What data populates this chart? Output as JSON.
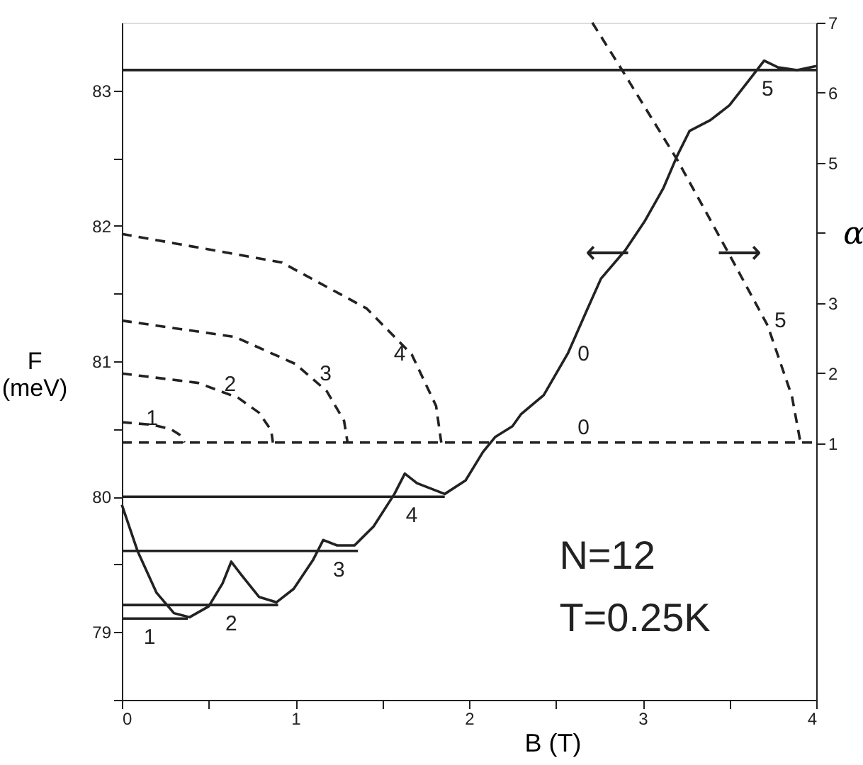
{
  "chart_data": {
    "type": "line",
    "xlabel": "B (T)",
    "ylabel": "F (meV)",
    "y2label": "α",
    "xlim": [
      0,
      4
    ],
    "xticks": [
      0,
      {
        "value": 0.5,
        "label": null
      },
      1,
      {
        "value": 1.5,
        "label": null
      },
      2,
      {
        "value": 2.5,
        "label": null
      },
      3,
      {
        "value": 3.5,
        "label": null
      },
      4
    ],
    "ylim": [
      78.5,
      83.5
    ],
    "yticks": [
      {
        "value": 78.5,
        "label": null
      },
      79,
      {
        "value": 79.5,
        "label": null
      },
      80,
      {
        "value": 80.5,
        "label": null
      },
      81,
      {
        "value": 81.5,
        "label": null
      },
      82,
      {
        "value": 82.5,
        "label": null
      },
      83
    ],
    "y2lim": [
      -2.66,
      7
    ],
    "y2ticks": [
      1,
      2,
      3,
      {
        "value": 4,
        "label": null
      },
      5,
      6,
      7
    ],
    "grid": false,
    "marker": "none",
    "series": [
      {
        "color": "#222222",
        "line_style": "solid",
        "x": [
          0,
          0.09,
          0.2,
          0.3,
          0.39,
          0.5,
          0.58,
          0.63,
          0.69,
          0.79,
          0.89,
          0.99,
          1.1,
          1.16,
          1.24,
          1.34,
          1.45,
          1.57,
          1.63,
          1.7,
          1.86,
          1.98,
          2.08,
          2.15,
          2.25,
          2.3,
          2.43,
          2.57,
          2.68,
          2.76,
          2.9,
          3.01,
          3.12,
          3.2,
          3.27,
          3.39,
          3.5,
          3.61,
          3.7,
          3.78,
          3.89,
          4.0
        ],
        "values": [
          79.94,
          79.6,
          79.29,
          79.14,
          79.11,
          79.19,
          79.36,
          79.52,
          79.42,
          79.26,
          79.22,
          79.32,
          79.53,
          79.68,
          79.64,
          79.64,
          79.78,
          80.02,
          80.17,
          80.1,
          80.02,
          80.12,
          80.33,
          80.44,
          80.52,
          80.61,
          80.75,
          81.06,
          81.38,
          81.61,
          81.82,
          82.03,
          82.28,
          82.52,
          82.7,
          82.78,
          82.89,
          83.07,
          83.22,
          83.17,
          83.15,
          83.18
        ]
      },
      {
        "color": "#222222",
        "line_style": "solid",
        "x": [
          0,
          0.38
        ],
        "values": [
          79.1,
          79.1
        ]
      },
      {
        "color": "#222222",
        "line_style": "solid",
        "x": [
          0,
          0.9
        ],
        "values": [
          79.2,
          79.2
        ]
      },
      {
        "color": "#222222",
        "line_style": "solid",
        "x": [
          0,
          1.36
        ],
        "values": [
          79.6,
          79.6
        ]
      },
      {
        "color": "#222222",
        "line_style": "solid",
        "x": [
          0,
          1.86
        ],
        "values": [
          80.0,
          80.0
        ]
      },
      {
        "color": "#222222",
        "line_style": "solid",
        "x": [
          0,
          4
        ],
        "values": [
          83.15,
          83.15
        ]
      },
      {
        "color": "#222222",
        "line_style": "dashed",
        "x": [
          0,
          4
        ],
        "values": [
          80.4,
          80.4
        ]
      },
      {
        "color": "#222222",
        "line_style": "dashed",
        "x": [
          0,
          0.18,
          0.28,
          0.33,
          0.35,
          0.36
        ],
        "values": [
          80.55,
          80.53,
          80.5,
          80.46,
          80.43,
          80.4
        ]
      },
      {
        "color": "#222222",
        "line_style": "dashed",
        "x": [
          0,
          0.44,
          0.67,
          0.79,
          0.86,
          0.87
        ],
        "values": [
          80.91,
          80.84,
          80.73,
          80.62,
          80.49,
          80.4
        ]
      },
      {
        "color": "#222222",
        "line_style": "dashed",
        "x": [
          0,
          0.65,
          1.0,
          1.18,
          1.28,
          1.3
        ],
        "values": [
          81.3,
          81.18,
          80.98,
          80.78,
          80.56,
          80.4
        ]
      },
      {
        "color": "#222222",
        "line_style": "dashed",
        "x": [
          0,
          0.92,
          1.41,
          1.67,
          1.81,
          1.84
        ],
        "values": [
          81.94,
          81.73,
          81.39,
          81.05,
          80.67,
          80.4
        ]
      },
      {
        "color": "#222222",
        "line_style": "dashed",
        "axis": "y2",
        "x": [
          2.71,
          2.88,
          3.2,
          3.5,
          3.72,
          3.86,
          3.91
        ],
        "values": [
          7,
          6.33,
          5.04,
          3.69,
          2.68,
          1.67,
          1.0
        ]
      }
    ],
    "annotations": [
      {
        "text": "1",
        "x": 0.16,
        "y": 79.1
      },
      {
        "text": "2",
        "x": 0.63,
        "y": 79.2
      },
      {
        "text": "3",
        "x": 1.25,
        "y": 79.6
      },
      {
        "text": "4",
        "x": 1.67,
        "y": 80.0
      },
      {
        "text": "5",
        "x": 3.72,
        "y": 83.15
      },
      {
        "text": "1",
        "x": 0.1,
        "y": 80.54
      },
      {
        "text": "2",
        "x": 0.55,
        "y": 80.79
      },
      {
        "text": "3",
        "x": 1.1,
        "y": 80.87
      },
      {
        "text": "4",
        "x": 1.6,
        "y": 81.06
      },
      {
        "text": "0",
        "x": 2.66,
        "y": 80.4
      },
      {
        "text": "0",
        "x": 2.57,
        "y": 81.06
      },
      {
        "text": "5",
        "x": 3.72,
        "y": 81.26
      },
      "⟵",
      "⟶",
      "N=12",
      "T=0.25K"
    ]
  }
}
